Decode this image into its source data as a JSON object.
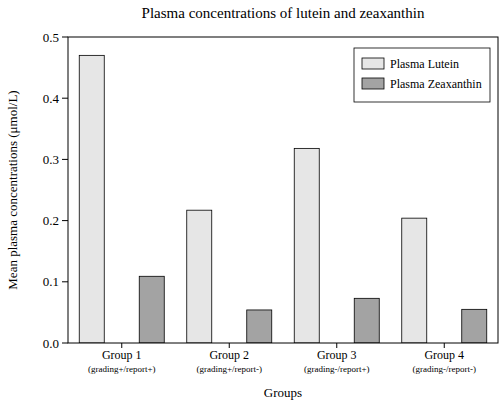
{
  "chart_data": {
    "type": "bar",
    "title": "Plasma concentrations of lutein and zeaxanthin",
    "x_label": "Groups",
    "y_label": "Mean plasma concentrations (μmol/L)",
    "categories": [
      "Group 1\n(grading+/report+)",
      "Group 2\n(grading+/report-)",
      "Group 3\n(grading-/report+)",
      "Group 4\n(grading-/report-)"
    ],
    "series": [
      {
        "name": "Plasma Lutein",
        "color": "#e6e6e6",
        "values": [
          0.47,
          0.217,
          0.318,
          0.204
        ]
      },
      {
        "name": "Plasma Zeaxanthin",
        "color": "#a3a3a3",
        "values": [
          0.109,
          0.054,
          0.073,
          0.055
        ]
      }
    ],
    "ylim": [
      0,
      0.5
    ],
    "yticks": [
      {
        "value": 0,
        "label": "0.0"
      },
      0.1,
      0.2,
      0.3,
      0.4,
      0.5
    ],
    "grid": false,
    "legend": "upper right"
  }
}
